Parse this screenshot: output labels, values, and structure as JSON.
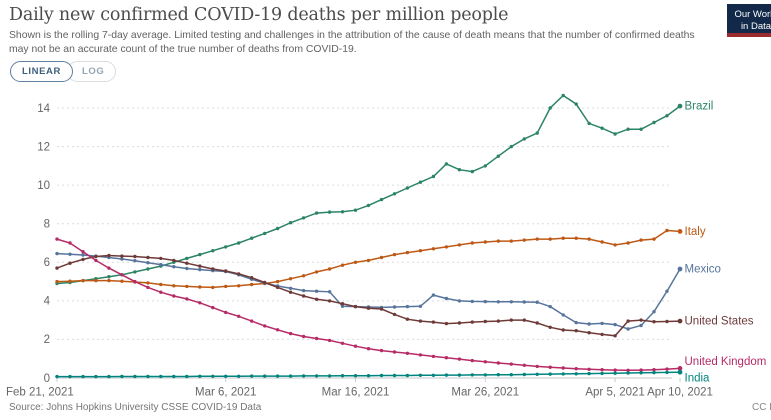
{
  "header": {
    "title": "Daily new confirmed COVID-19 deaths per million people",
    "subtitle": "Shown is the rolling 7-day average. Limited testing and challenges in the attribution of the cause of death means that the number of confirmed deaths may not be an accurate count of the true number of deaths from COVID-19."
  },
  "logo": {
    "line1": "Our World",
    "line2": "in Data"
  },
  "controls": {
    "linear_label": "LINEAR",
    "log_label": "LOG"
  },
  "chart_data": {
    "type": "line",
    "title": "Daily new confirmed COVID-19 deaths per million people",
    "x_unit": "date",
    "x_days_total": 48,
    "x_ticks": [
      {
        "day": 0,
        "label": "Feb 21, 2021"
      },
      {
        "day": 13,
        "label": "Mar 6, 2021"
      },
      {
        "day": 23,
        "label": "Mar 16, 2021"
      },
      {
        "day": 33,
        "label": "Mar 26, 2021"
      },
      {
        "day": 43,
        "label": "Apr 5, 2021"
      },
      {
        "day": 48,
        "label": "Apr 10, 2021"
      }
    ],
    "y_ticks": [
      0,
      2,
      4,
      6,
      8,
      10,
      12,
      14
    ],
    "ylim": [
      0,
      14.8
    ],
    "grid": "horizontal-dashed",
    "legend_position": "line-end-labels",
    "series": [
      {
        "name": "Brazil",
        "color": "#2C8465",
        "label_dy": 0,
        "values": [
          4.9,
          4.95,
          5.05,
          5.15,
          5.25,
          5.35,
          5.5,
          5.65,
          5.8,
          6.0,
          6.2,
          6.4,
          6.6,
          6.8,
          7.0,
          7.25,
          7.5,
          7.75,
          8.05,
          8.3,
          8.55,
          8.6,
          8.62,
          8.7,
          8.95,
          9.25,
          9.55,
          9.85,
          10.15,
          10.45,
          11.1,
          10.8,
          10.7,
          11.0,
          11.5,
          12.0,
          12.4,
          12.7,
          14.0,
          14.65,
          14.2,
          13.2,
          12.95,
          12.65,
          12.9,
          12.9,
          13.25,
          13.6,
          14.1
        ]
      },
      {
        "name": "Italy",
        "color": "#BE5915",
        "label_dy": 0,
        "values": [
          5.0,
          5.02,
          5.05,
          5.05,
          5.05,
          5.02,
          4.98,
          4.93,
          4.85,
          4.78,
          4.75,
          4.72,
          4.7,
          4.75,
          4.78,
          4.85,
          4.9,
          5.0,
          5.15,
          5.3,
          5.5,
          5.65,
          5.85,
          6.0,
          6.1,
          6.25,
          6.4,
          6.5,
          6.6,
          6.7,
          6.8,
          6.9,
          7.0,
          7.05,
          7.1,
          7.1,
          7.15,
          7.2,
          7.2,
          7.25,
          7.25,
          7.2,
          7.05,
          6.9,
          7.0,
          7.15,
          7.2,
          7.65,
          7.6
        ]
      },
      {
        "name": "Mexico",
        "color": "#57749C",
        "label_dy": 0,
        "values": [
          6.45,
          6.42,
          6.38,
          6.32,
          6.25,
          6.17,
          6.08,
          5.98,
          5.88,
          5.77,
          5.68,
          5.62,
          5.57,
          5.52,
          5.35,
          5.12,
          4.92,
          4.77,
          4.65,
          4.53,
          4.5,
          4.47,
          3.72,
          3.7,
          3.68,
          3.66,
          3.68,
          3.7,
          3.72,
          4.3,
          4.12,
          4.0,
          3.97,
          3.96,
          3.95,
          3.95,
          3.94,
          3.93,
          3.7,
          3.27,
          2.87,
          2.8,
          2.83,
          2.77,
          2.54,
          2.72,
          3.44,
          4.5,
          5.65
        ]
      },
      {
        "name": "United States",
        "color": "#6E3A38",
        "label_dy": 0,
        "values": [
          5.7,
          5.95,
          6.15,
          6.3,
          6.35,
          6.32,
          6.3,
          6.25,
          6.2,
          6.1,
          5.95,
          5.8,
          5.65,
          5.55,
          5.4,
          5.2,
          4.95,
          4.7,
          4.45,
          4.25,
          4.08,
          4.0,
          3.85,
          3.7,
          3.62,
          3.58,
          3.3,
          3.05,
          2.95,
          2.9,
          2.82,
          2.85,
          2.9,
          2.93,
          2.95,
          3.0,
          3.0,
          2.85,
          2.63,
          2.49,
          2.45,
          2.35,
          2.26,
          2.19,
          2.95,
          3.0,
          2.92,
          2.93,
          2.95
        ]
      },
      {
        "name": "United Kingdom",
        "color": "#B62A66",
        "label_dy": -7,
        "values": [
          7.2,
          7.0,
          6.55,
          6.1,
          5.7,
          5.35,
          5.0,
          4.7,
          4.45,
          4.25,
          4.1,
          3.9,
          3.65,
          3.4,
          3.2,
          2.95,
          2.7,
          2.5,
          2.3,
          2.15,
          2.05,
          1.95,
          1.8,
          1.65,
          1.52,
          1.42,
          1.35,
          1.28,
          1.2,
          1.12,
          1.05,
          0.98,
          0.9,
          0.84,
          0.78,
          0.72,
          0.66,
          0.6,
          0.56,
          0.52,
          0.48,
          0.45,
          0.43,
          0.41,
          0.4,
          0.41,
          0.43,
          0.46,
          0.5
        ]
      },
      {
        "name": "India",
        "color": "#00847E",
        "label_dy": 6,
        "values": [
          0.07,
          0.07,
          0.07,
          0.07,
          0.07,
          0.08,
          0.08,
          0.08,
          0.08,
          0.08,
          0.08,
          0.09,
          0.09,
          0.09,
          0.09,
          0.1,
          0.1,
          0.1,
          0.1,
          0.11,
          0.11,
          0.11,
          0.12,
          0.12,
          0.12,
          0.13,
          0.13,
          0.13,
          0.14,
          0.14,
          0.15,
          0.15,
          0.16,
          0.16,
          0.17,
          0.17,
          0.18,
          0.19,
          0.2,
          0.21,
          0.22,
          0.23,
          0.24,
          0.25,
          0.26,
          0.27,
          0.28,
          0.29,
          0.3
        ]
      }
    ]
  },
  "footer": {
    "source": "Source: Johns Hopkins University CSSE COVID-19 Data",
    "license": "CC BY"
  }
}
